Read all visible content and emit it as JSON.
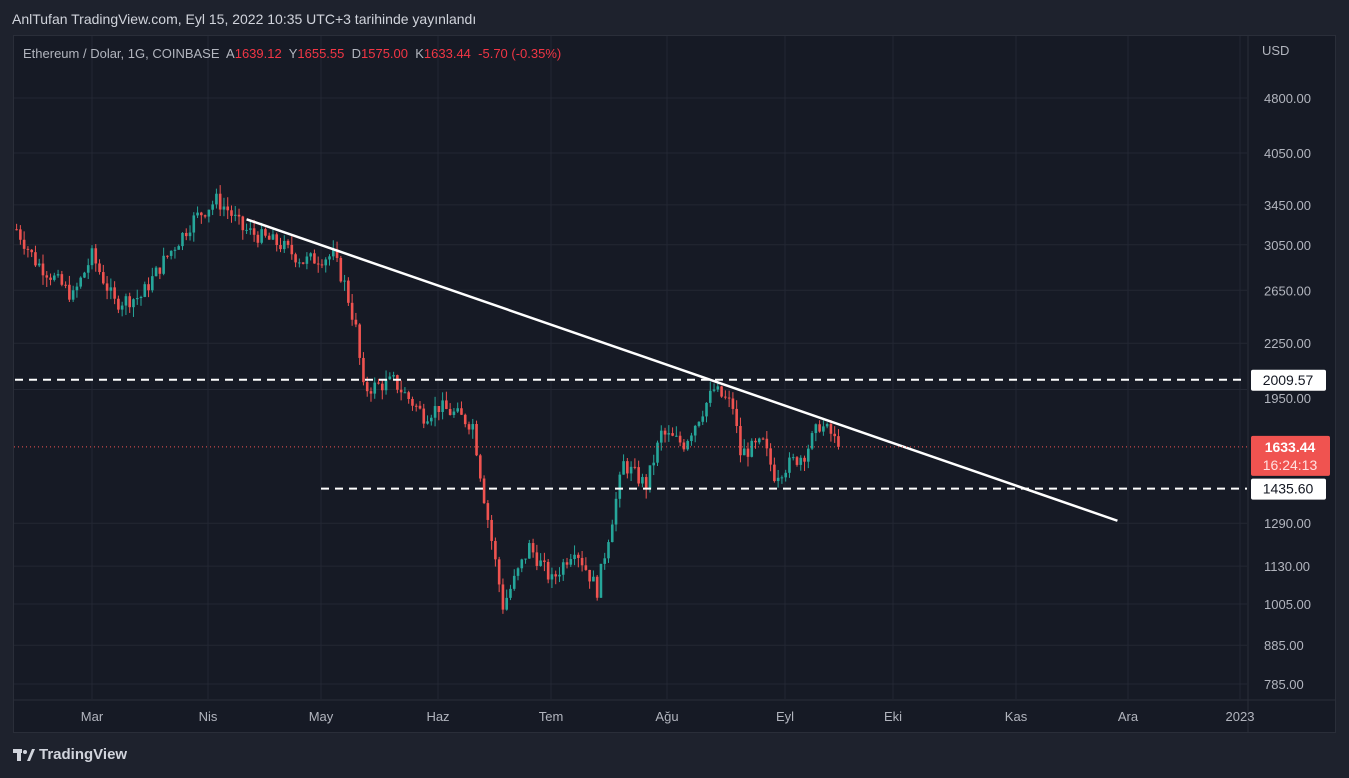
{
  "header": {
    "published": "AnlTufan TradingView.com, Eyl 15, 2022 10:35 UTC+3 tarihinde yayınlandı"
  },
  "legend": {
    "symbol": "Ethereum / Dolar, 1G, COINBASE",
    "open_label": "A",
    "open": "1639.12",
    "high_label": "Y",
    "high": "1655.55",
    "low_label": "D",
    "low": "1575.00",
    "close_label": "K",
    "close": "1633.44",
    "change": "-5.70 (-0.35%)"
  },
  "footer": {
    "brand": "TradingView"
  },
  "colors": {
    "up": "#26a69a",
    "down": "#ef5350",
    "background": "#161a25",
    "badge": "#f05350"
  },
  "chart_data": {
    "type": "candlestick",
    "scale": "log",
    "currency": "USD",
    "y_ticks": [
      4800,
      4050,
      3450,
      3050,
      2650,
      2250,
      1950,
      1290,
      1130,
      1005,
      885,
      785
    ],
    "y_tick_labels": [
      "4800.00",
      "4050.00",
      "3450.00",
      "3050.00",
      "2650.00",
      "2250.00",
      "1950.00",
      "1290.00",
      "1130.00",
      "1005.00",
      "885.00",
      "785.00"
    ],
    "x_labels": [
      "Mar",
      "Nis",
      "May",
      "Haz",
      "Tem",
      "Ağu",
      "Eyl",
      "Eki",
      "Kas",
      "Ara",
      "2023"
    ],
    "last_price": {
      "value": 1633.44,
      "label": "1633.44",
      "countdown": "16:24:13"
    },
    "horizontal_levels": [
      {
        "value": 2009.57,
        "label": "2009.57"
      },
      {
        "value": 1435.6,
        "label": "1435.60"
      }
    ],
    "trendline": {
      "from": {
        "date": "2022-04-11",
        "price": 3300
      },
      "to": {
        "date": "2022-11-28",
        "price": 1300
      }
    },
    "close_keypoints": [
      [
        "2022-02-09",
        3200
      ],
      [
        "2022-02-14",
        2900
      ],
      [
        "2022-02-19",
        2750
      ],
      [
        "2022-02-24",
        2600
      ],
      [
        "2022-03-01",
        2950
      ],
      [
        "2022-03-07",
        2550
      ],
      [
        "2022-03-14",
        2600
      ],
      [
        "2022-03-20",
        2900
      ],
      [
        "2022-03-28",
        3300
      ],
      [
        "2022-04-03",
        3500
      ],
      [
        "2022-04-06",
        3400
      ],
      [
        "2022-04-10",
        3200
      ],
      [
        "2022-04-20",
        3050
      ],
      [
        "2022-04-26",
        2900
      ],
      [
        "2022-05-04",
        2950
      ],
      [
        "2022-05-07",
        2700
      ],
      [
        "2022-05-10",
        2350
      ],
      [
        "2022-05-12",
        1950
      ],
      [
        "2022-05-20",
        2000
      ],
      [
        "2022-05-28",
        1800
      ],
      [
        "2022-06-01",
        1850
      ],
      [
        "2022-06-06",
        1800
      ],
      [
        "2022-06-10",
        1750
      ],
      [
        "2022-06-13",
        1400
      ],
      [
        "2022-06-18",
        1000
      ],
      [
        "2022-06-25",
        1200
      ],
      [
        "2022-07-01",
        1080
      ],
      [
        "2022-07-07",
        1200
      ],
      [
        "2022-07-13",
        1050
      ],
      [
        "2022-07-20",
        1550
      ],
      [
        "2022-07-26",
        1450
      ],
      [
        "2022-07-30",
        1700
      ],
      [
        "2022-08-05",
        1650
      ],
      [
        "2022-08-13",
        1950
      ],
      [
        "2022-08-18",
        1850
      ],
      [
        "2022-08-20",
        1600
      ],
      [
        "2022-08-26",
        1650
      ],
      [
        "2022-08-29",
        1500
      ],
      [
        "2022-09-06",
        1600
      ],
      [
        "2022-09-10",
        1750
      ],
      [
        "2022-09-13",
        1700
      ],
      [
        "2022-09-15",
        1633.44
      ]
    ]
  }
}
